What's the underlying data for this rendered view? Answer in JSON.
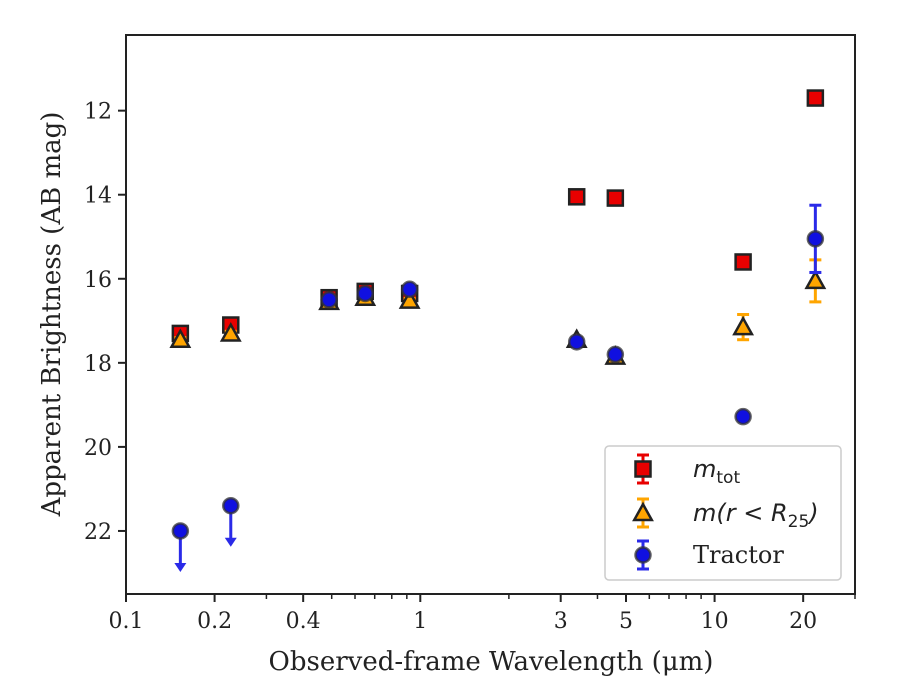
{
  "chart_data": {
    "type": "scatter",
    "title": "",
    "xlabel": "Observed-frame Wavelength (μm)",
    "ylabel": "Apparent Brightness (AB mag)",
    "xscale": "log",
    "xlim": [
      0.1,
      30
    ],
    "ylim": [
      23.5,
      10.2
    ],
    "y_inverted": true,
    "x_major_ticks": [
      0.1,
      0.2,
      0.4,
      1,
      3,
      5,
      10,
      20
    ],
    "x_tick_labels": [
      "0.1",
      "0.2",
      "0.4",
      "1",
      "3",
      "5",
      "10",
      "20"
    ],
    "y_ticks": [
      12,
      14,
      16,
      18,
      20,
      22
    ],
    "y_tick_labels": [
      "12",
      "14",
      "16",
      "18",
      "20",
      "22"
    ],
    "grid": false,
    "legend_placement": "lower-right",
    "colors": {
      "mtot": "#e80000",
      "mr25": "#ffa500",
      "tractor": "#1010e0",
      "tractor_arrow": "#2a2ae8",
      "edge": "#222222"
    },
    "series": [
      {
        "name": "m_tot",
        "marker": "square",
        "x": [
          0.153,
          0.227,
          0.49,
          0.65,
          0.92,
          3.4,
          4.6,
          12.5,
          22.0
        ],
        "y": [
          17.3,
          17.1,
          16.45,
          16.3,
          16.35,
          14.05,
          14.08,
          15.6,
          11.7
        ],
        "yerr": [
          0.15,
          0.1,
          0.05,
          0.05,
          0.05,
          0.05,
          0.05,
          0.1,
          0.05
        ]
      },
      {
        "name": "m(r < R_25)",
        "marker": "triangle",
        "x": [
          0.153,
          0.227,
          0.49,
          0.65,
          0.92,
          3.4,
          4.6,
          12.5,
          22.0
        ],
        "y": [
          17.45,
          17.3,
          16.55,
          16.45,
          16.52,
          17.45,
          17.85,
          17.15,
          16.05
        ],
        "yerr": [
          0.05,
          0.05,
          0.05,
          0.05,
          0.05,
          0.05,
          0.05,
          0.3,
          0.5
        ]
      },
      {
        "name": "Tractor",
        "marker": "circle",
        "x": [
          0.153,
          0.227,
          0.49,
          0.65,
          0.92,
          3.4,
          4.6,
          12.5,
          22.0
        ],
        "y": [
          22.0,
          21.4,
          16.5,
          16.35,
          16.25,
          17.5,
          17.8,
          19.28,
          15.05
        ],
        "yerr": [
          0,
          0,
          0.05,
          0.05,
          0.05,
          0.05,
          0.05,
          0.05,
          0.8
        ],
        "upper_limit": [
          true,
          true,
          false,
          false,
          false,
          false,
          false,
          false,
          false
        ]
      }
    ],
    "legend": {
      "entries": [
        {
          "base": "m",
          "sub": "tot",
          "series": 0
        },
        {
          "base": "m(r < R",
          "sub": "25",
          "suffix": ")",
          "series": 1
        },
        {
          "base": "Tractor",
          "sub": "",
          "series": 2
        }
      ]
    }
  }
}
